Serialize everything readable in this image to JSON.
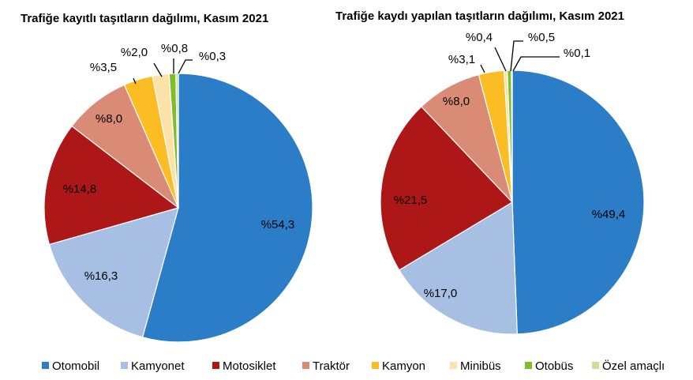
{
  "chart_data": [
    {
      "type": "pie",
      "title": "Trafiğe kayıtlı taşıtların dağılımı, Kasım 2021",
      "categories": [
        "Otomobil",
        "Kamyonet",
        "Motosiklet",
        "Traktör",
        "Kamyon",
        "Minibüs",
        "Otobüs",
        "Özel amaçlı"
      ],
      "values": [
        54.3,
        16.3,
        14.8,
        8.0,
        3.5,
        2.0,
        0.8,
        0.3
      ],
      "labels": [
        "%54,3",
        "%16,3",
        "%14,8",
        "%8,0",
        "%3,5",
        "%2,0",
        "%0,8",
        "%0,3"
      ]
    },
    {
      "type": "pie",
      "title": "Trafiğe kaydı yapılan taşıtların dağılımı, Kasım 2021",
      "categories": [
        "Otomobil",
        "Kamyonet",
        "Motosiklet",
        "Traktör",
        "Kamyon",
        "Minibüs",
        "Otobüs",
        "Özel amaçlı"
      ],
      "values": [
        49.4,
        17.0,
        21.5,
        8.0,
        3.1,
        0.4,
        0.5,
        0.1
      ],
      "labels": [
        "%49,4",
        "%17,0",
        "%21,5",
        "%8,0",
        "%3,1",
        "%0,4",
        "%0,5",
        "%0,1"
      ]
    }
  ],
  "legend": {
    "position": "bottom",
    "items": [
      "Otomobil",
      "Kamyonet",
      "Motosiklet",
      "Traktör",
      "Kamyon",
      "Minibüs",
      "Otobüs",
      "Özel amaçlı"
    ]
  },
  "colors": [
    "#2A7DC6",
    "#A7BFE3",
    "#AE1718",
    "#D98B76",
    "#FBBC24",
    "#FCE2A8",
    "#7EBD2B",
    "#CCE09A"
  ]
}
